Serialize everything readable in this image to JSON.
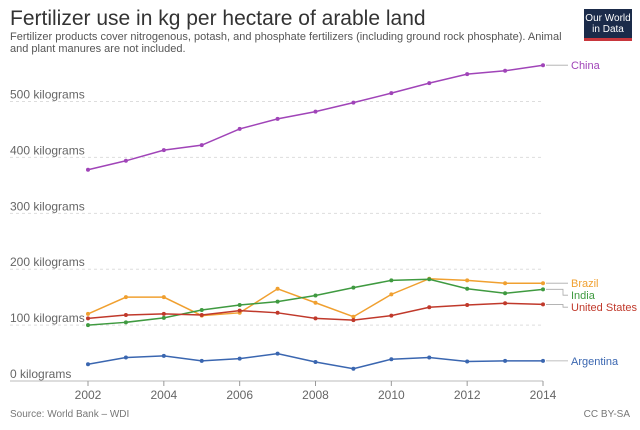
{
  "header": {
    "title": "Fertilizer use in kg per hectare of arable land",
    "subtitle": "Fertilizer products cover nitrogenous, potash, and phosphate fertilizers (including ground rock phosphate). Animal and plant manures are not included."
  },
  "logo": {
    "line1": "Our World",
    "line2": "in Data"
  },
  "footer": {
    "source": "Source: World Bank – WDI",
    "license": "CC BY-SA"
  },
  "chart_data": {
    "type": "line",
    "title": "Fertilizer use in kg per hectare of arable land",
    "xlabel": "",
    "ylabel": "",
    "x": [
      2002,
      2003,
      2004,
      2005,
      2006,
      2007,
      2008,
      2009,
      2010,
      2011,
      2012,
      2013,
      2014
    ],
    "xticks": [
      2002,
      2004,
      2006,
      2008,
      2010,
      2012,
      2014
    ],
    "yticks": [
      0,
      100,
      200,
      300,
      400,
      500
    ],
    "ytick_labels": [
      "0 kilograms",
      "100 kilograms",
      "200 kilograms",
      "300 kilograms",
      "400 kilograms",
      "500 kilograms"
    ],
    "ylim": [
      0,
      560
    ],
    "xlim": [
      2002,
      2014
    ],
    "grid": true,
    "legend": "right, inline labels",
    "series": [
      {
        "name": "China",
        "color": "#a044b8",
        "values": [
          378,
          394,
          413,
          422,
          451,
          469,
          482,
          498,
          515,
          533,
          549,
          555,
          565
        ]
      },
      {
        "name": "Brazil",
        "color": "#f0a030",
        "values": [
          120,
          150,
          150,
          117,
          122,
          165,
          140,
          115,
          155,
          183,
          180,
          175,
          175
        ]
      },
      {
        "name": "India",
        "color": "#3f9a40",
        "values": [
          100,
          105,
          113,
          127,
          136,
          142,
          153,
          167,
          180,
          182,
          165,
          157,
          164
        ]
      },
      {
        "name": "United States",
        "color": "#c0392b",
        "values": [
          112,
          118,
          120,
          118,
          126,
          122,
          112,
          109,
          117,
          132,
          136,
          139,
          137
        ]
      },
      {
        "name": "Argentina",
        "color": "#3a66b0",
        "values": [
          30,
          42,
          45,
          36,
          40,
          49,
          34,
          22,
          39,
          42,
          35,
          36,
          36
        ]
      }
    ]
  }
}
